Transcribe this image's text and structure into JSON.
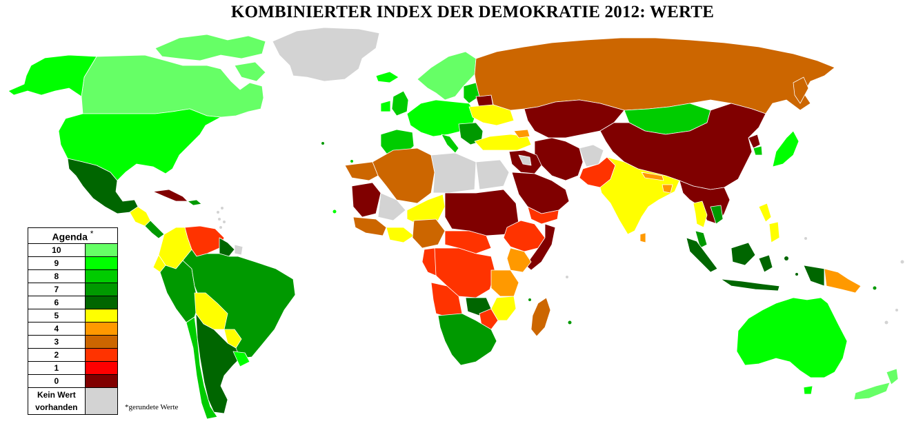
{
  "title": "KOMBINIERTER INDEX DER DEMOKRATIE 2012: WERTE",
  "legend": {
    "header": "Agenda",
    "header_mark": "*",
    "items": [
      {
        "label": "10",
        "color": "#66FF66"
      },
      {
        "label": "9",
        "color": "#00FF00"
      },
      {
        "label": "8",
        "color": "#00CC00"
      },
      {
        "label": "7",
        "color": "#009900"
      },
      {
        "label": "6",
        "color": "#006600"
      },
      {
        "label": "5",
        "color": "#FFFF00"
      },
      {
        "label": "4",
        "color": "#FF9900"
      },
      {
        "label": "3",
        "color": "#CC6600"
      },
      {
        "label": "2",
        "color": "#FF3300"
      },
      {
        "label": "1",
        "color": "#FF0000"
      },
      {
        "label": "0",
        "color": "#800000"
      }
    ],
    "no_data_line1": "Kein Wert",
    "no_data_line2": "vorhanden",
    "no_data_color": "#D3D3D3"
  },
  "footnote": "*gerundete Werte",
  "regions": [
    {
      "name": "Kanada",
      "score": "10"
    },
    {
      "name": "Alaska (USA)",
      "score": "9"
    },
    {
      "name": "USA",
      "score": "9"
    },
    {
      "name": "Grönland",
      "score": "Kein Wert"
    },
    {
      "name": "Mexiko",
      "score": "6"
    },
    {
      "name": "Kuba",
      "score": "0"
    },
    {
      "name": "Venezuela",
      "score": "2"
    },
    {
      "name": "Kolumbien",
      "score": "5"
    },
    {
      "name": "Brasilien",
      "score": "7"
    },
    {
      "name": "Peru",
      "score": "7"
    },
    {
      "name": "Bolivien",
      "score": "5"
    },
    {
      "name": "Argentinien",
      "score": "6"
    },
    {
      "name": "Chile",
      "score": "8"
    },
    {
      "name": "Uruguay",
      "score": "9"
    },
    {
      "name": "Russland",
      "score": "3"
    },
    {
      "name": "China",
      "score": "0"
    },
    {
      "name": "Mongolei",
      "score": "8"
    },
    {
      "name": "Indien",
      "score": "5"
    },
    {
      "name": "Pakistan",
      "score": "2"
    },
    {
      "name": "Iran",
      "score": "0"
    },
    {
      "name": "Saudi-Arabien",
      "score": "0"
    },
    {
      "name": "Türkei",
      "score": "5"
    },
    {
      "name": "Ukraine",
      "score": "5"
    },
    {
      "name": "Westeuropa",
      "score": "9"
    },
    {
      "name": "Skandinavien",
      "score": "10"
    },
    {
      "name": "Algerien",
      "score": "3"
    },
    {
      "name": "Libyen",
      "score": "Kein Wert"
    },
    {
      "name": "Sudan",
      "score": "0"
    },
    {
      "name": "Nigeria",
      "score": "5"
    },
    {
      "name": "DR Kongo",
      "score": "2"
    },
    {
      "name": "Tansania",
      "score": "4"
    },
    {
      "name": "Äthiopien",
      "score": "2"
    },
    {
      "name": "Somalia",
      "score": "0"
    },
    {
      "name": "Südafrika",
      "score": "7"
    },
    {
      "name": "Madagaskar",
      "score": "3"
    },
    {
      "name": "Australien",
      "score": "9"
    },
    {
      "name": "Neuseeland",
      "score": "10"
    },
    {
      "name": "Indonesien",
      "score": "6"
    },
    {
      "name": "Philippinen",
      "score": "5"
    },
    {
      "name": "Papua-Neuguinea",
      "score": "4"
    },
    {
      "name": "Japan",
      "score": "9"
    },
    {
      "name": "Südostasien",
      "score": "0"
    }
  ]
}
